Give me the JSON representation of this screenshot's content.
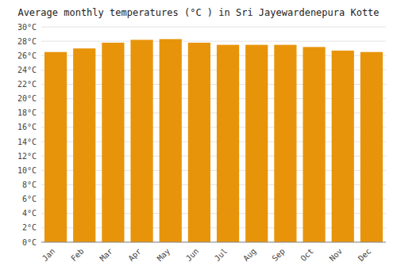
{
  "chart_data": {
    "type": "bar",
    "title": "Average monthly temperatures (°C ) in Sri Jayewardenepura Kotte",
    "categories": [
      "Jan",
      "Feb",
      "Mar",
      "Apr",
      "May",
      "Jun",
      "Jul",
      "Aug",
      "Sep",
      "Oct",
      "Nov",
      "Dec"
    ],
    "values": [
      26.5,
      27.0,
      27.8,
      28.2,
      28.3,
      27.8,
      27.5,
      27.5,
      27.5,
      27.2,
      26.7,
      26.5
    ],
    "color": "#E8940A",
    "ylim": [
      0,
      30
    ],
    "yticks": [
      {
        "value": 0,
        "label": "0°C"
      },
      {
        "value": 2,
        "label": "2°C"
      },
      {
        "value": 4,
        "label": "4°C"
      },
      {
        "value": 6,
        "label": "6°C"
      },
      {
        "value": 8,
        "label": "8°C"
      },
      {
        "value": 10,
        "label": "10°C"
      },
      {
        "value": 12,
        "label": "12°C"
      },
      {
        "value": 14,
        "label": "14°C"
      },
      {
        "value": 16,
        "label": "16°C"
      },
      {
        "value": 18,
        "label": "18°C"
      },
      {
        "value": 20,
        "label": "20°C"
      },
      {
        "value": 22,
        "label": "22°C"
      },
      {
        "value": 24,
        "label": "24°C"
      },
      {
        "value": 26,
        "label": "26°C"
      },
      {
        "value": 28,
        "label": "28°C"
      },
      {
        "value": 30,
        "label": "30°C"
      }
    ],
    "grid": true
  }
}
